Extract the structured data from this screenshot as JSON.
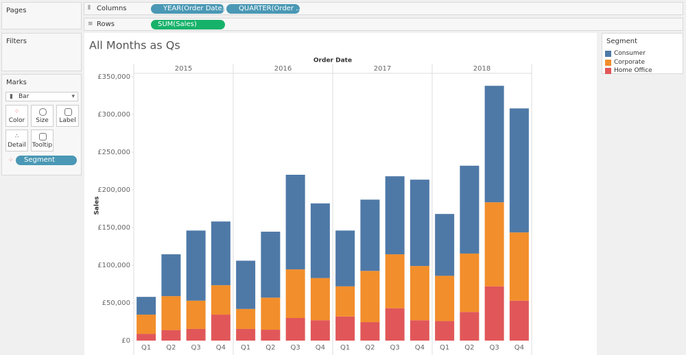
{
  "panels": {
    "pages": "Pages",
    "filters": "Filters",
    "marks": "Marks"
  },
  "shelves": {
    "columns": {
      "label": "Columns",
      "pills": [
        "YEAR(Order Date)",
        "QUARTER(Order .."
      ]
    },
    "rows": {
      "label": "Rows",
      "pills": [
        "SUM(Sales)"
      ]
    }
  },
  "marks_card": {
    "mark_type": "Bar",
    "buttons": [
      "Color",
      "Size",
      "Label",
      "Detail",
      "Tooltip"
    ],
    "field": "Segment"
  },
  "chart_data": {
    "type": "bar",
    "stacked": true,
    "title": "All Months as Qs",
    "x_label": "Order Date",
    "y_label": "Sales",
    "category_groups": [
      "2015",
      "2016",
      "2017",
      "2018"
    ],
    "categories": [
      "Q1",
      "Q2",
      "Q3",
      "Q4",
      "Q1",
      "Q2",
      "Q3",
      "Q4",
      "Q1",
      "Q2",
      "Q3",
      "Q4",
      "Q1",
      "Q2",
      "Q3",
      "Q4"
    ],
    "legend_title": "Segment",
    "legend": "right",
    "series": [
      {
        "name": "Consumer",
        "color": "#4e79a7",
        "values": [
          23500,
          55500,
          93000,
          84500,
          64000,
          87500,
          125500,
          99000,
          74000,
          94500,
          103500,
          114500,
          82000,
          116500,
          154500,
          164500
        ]
      },
      {
        "name": "Corporate",
        "color": "#f28e2b",
        "values": [
          25500,
          45000,
          37500,
          39000,
          26500,
          42500,
          64500,
          56000,
          40000,
          68000,
          71500,
          72000,
          60000,
          77500,
          111500,
          90500
        ]
      },
      {
        "name": "Home Office",
        "color": "#e15759",
        "values": [
          9000,
          14000,
          15500,
          34500,
          15500,
          14500,
          30000,
          27000,
          32000,
          24500,
          43000,
          27000,
          26000,
          38000,
          72000,
          53000
        ]
      }
    ],
    "ylim": [
      0,
      350000
    ],
    "yticks": [
      {
        "value": 0,
        "label": "£0"
      },
      {
        "value": 50000,
        "label": "£50,000"
      },
      {
        "value": 100000,
        "label": "£100,000"
      },
      {
        "value": 150000,
        "label": "£150,000"
      },
      {
        "value": 200000,
        "label": "£200,000"
      },
      {
        "value": 250000,
        "label": "£250,000"
      },
      {
        "value": 300000,
        "label": "£300,000"
      },
      {
        "value": 350000,
        "label": "£350,000"
      }
    ],
    "grid": false
  }
}
